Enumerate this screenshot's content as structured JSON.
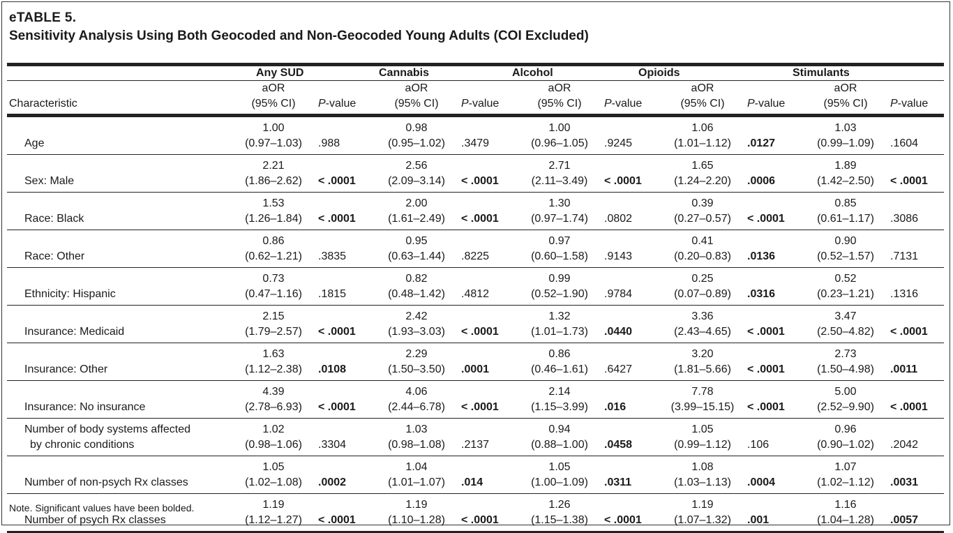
{
  "label": "eTABLE 5.",
  "title": "Sensitivity Analysis Using Both Geocoded and Non-Geocoded Young Adults (COI Excluded)",
  "groups": [
    "Any SUD",
    "Cannabis",
    "Alcohol",
    "Opioids",
    "Stimulants"
  ],
  "subheaders": {
    "characteristic": "Characteristic",
    "aor_line1": "aOR",
    "aor_line2": "(95% CI)",
    "p_italic": "P",
    "p_rest": "-value"
  },
  "rows": [
    {
      "name": "Age",
      "cells": [
        [
          "1.00",
          "(0.97–1.03)",
          ".988",
          false
        ],
        [
          "0.98",
          "(0.95–1.02)",
          ".3479",
          false
        ],
        [
          "1.00",
          "(0.96–1.05)",
          ".9245",
          false
        ],
        [
          "1.06",
          "(1.01–1.12)",
          ".0127",
          true
        ],
        [
          "1.03",
          "(0.99–1.09)",
          ".1604",
          false
        ]
      ]
    },
    {
      "name": "Sex: Male",
      "cells": [
        [
          "2.21",
          "(1.86–2.62)",
          "< .0001",
          true
        ],
        [
          "2.56",
          "(2.09–3.14)",
          "< .0001",
          true
        ],
        [
          "2.71",
          "(2.11–3.49)",
          "< .0001",
          true
        ],
        [
          "1.65",
          "(1.24–2.20)",
          ".0006",
          true
        ],
        [
          "1.89",
          "(1.42–2.50)",
          "< .0001",
          true
        ]
      ]
    },
    {
      "name": "Race: Black",
      "cells": [
        [
          "1.53",
          "(1.26–1.84)",
          "< .0001",
          true
        ],
        [
          "2.00",
          "(1.61–2.49)",
          "< .0001",
          true
        ],
        [
          "1.30",
          "(0.97–1.74)",
          ".0802",
          false
        ],
        [
          "0.39",
          "(0.27–0.57)",
          "< .0001",
          true
        ],
        [
          "0.85",
          "(0.61–1.17)",
          ".3086",
          false
        ]
      ]
    },
    {
      "name": "Race: Other",
      "cells": [
        [
          "0.86",
          "(0.62–1.21)",
          ".3835",
          false
        ],
        [
          "0.95",
          "(0.63–1.44)",
          ".8225",
          false
        ],
        [
          "0.97",
          "(0.60–1.58)",
          ".9143",
          false
        ],
        [
          "0.41",
          "(0.20–0.83)",
          ".0136",
          true
        ],
        [
          "0.90",
          "(0.52–1.57)",
          ".7131",
          false
        ]
      ]
    },
    {
      "name": "Ethnicity: Hispanic",
      "cells": [
        [
          "0.73",
          "(0.47–1.16)",
          ".1815",
          false
        ],
        [
          "0.82",
          "(0.48–1.42)",
          ".4812",
          false
        ],
        [
          "0.99",
          "(0.52–1.90)",
          ".9784",
          false
        ],
        [
          "0.25",
          "(0.07–0.89)",
          ".0316",
          true
        ],
        [
          "0.52",
          "(0.23–1.21)",
          ".1316",
          false
        ]
      ]
    },
    {
      "name": "Insurance: Medicaid",
      "cells": [
        [
          "2.15",
          "(1.79–2.57)",
          "< .0001",
          true
        ],
        [
          "2.42",
          "(1.93–3.03)",
          "< .0001",
          true
        ],
        [
          "1.32",
          "(1.01–1.73)",
          ".0440",
          true
        ],
        [
          "3.36",
          "(2.43–4.65)",
          "< .0001",
          true
        ],
        [
          "3.47",
          "(2.50–4.82)",
          "< .0001",
          true
        ]
      ]
    },
    {
      "name": "Insurance: Other",
      "cells": [
        [
          "1.63",
          "(1.12–2.38)",
          ".0108",
          true
        ],
        [
          "2.29",
          "(1.50–3.50)",
          ".0001",
          true
        ],
        [
          "0.86",
          "(0.46–1.61)",
          ".6427",
          false
        ],
        [
          "3.20",
          "(1.81–5.66)",
          "< .0001",
          true
        ],
        [
          "2.73",
          "(1.50–4.98)",
          ".0011",
          true
        ]
      ]
    },
    {
      "name": "Insurance: No insurance",
      "cells": [
        [
          "4.39",
          "(2.78–6.93)",
          "< .0001",
          true
        ],
        [
          "4.06",
          "(2.44–6.78)",
          "< .0001",
          true
        ],
        [
          "2.14",
          "(1.15–3.99)",
          ".016",
          true
        ],
        [
          "7.78",
          "(3.99–15.15)",
          "< .0001",
          true
        ],
        [
          "5.00",
          "(2.52–9.90)",
          "< .0001",
          true
        ]
      ]
    },
    {
      "name": "Number of body systems affected by chronic conditions",
      "cells": [
        [
          "1.02",
          "(0.98–1.06)",
          ".3304",
          false
        ],
        [
          "1.03",
          "(0.98–1.08)",
          ".2137",
          false
        ],
        [
          "0.94",
          "(0.88–1.00)",
          ".0458",
          true
        ],
        [
          "1.05",
          "(0.99–1.12)",
          ".106",
          false
        ],
        [
          "0.96",
          "(0.90–1.02)",
          ".2042",
          false
        ]
      ]
    },
    {
      "name": "Number of non-psych Rx classes",
      "cells": [
        [
          "1.05",
          "(1.02–1.08)",
          ".0002",
          true
        ],
        [
          "1.04",
          "(1.01–1.07)",
          ".014",
          true
        ],
        [
          "1.05",
          "(1.00–1.09)",
          ".0311",
          true
        ],
        [
          "1.08",
          "(1.03–1.13)",
          ".0004",
          true
        ],
        [
          "1.07",
          "(1.02–1.12)",
          ".0031",
          true
        ]
      ]
    },
    {
      "name": "Number of psych Rx classes",
      "cells": [
        [
          "1.19",
          "(1.12–1.27)",
          "< .0001",
          true
        ],
        [
          "1.19",
          "(1.10–1.28)",
          "< .0001",
          true
        ],
        [
          "1.26",
          "(1.15–1.38)",
          "< .0001",
          true
        ],
        [
          "1.19",
          "(1.07–1.32)",
          ".001",
          true
        ],
        [
          "1.16",
          "(1.04–1.28)",
          ".0057",
          true
        ]
      ]
    }
  ],
  "note": "Note. Significant values have been bolded."
}
